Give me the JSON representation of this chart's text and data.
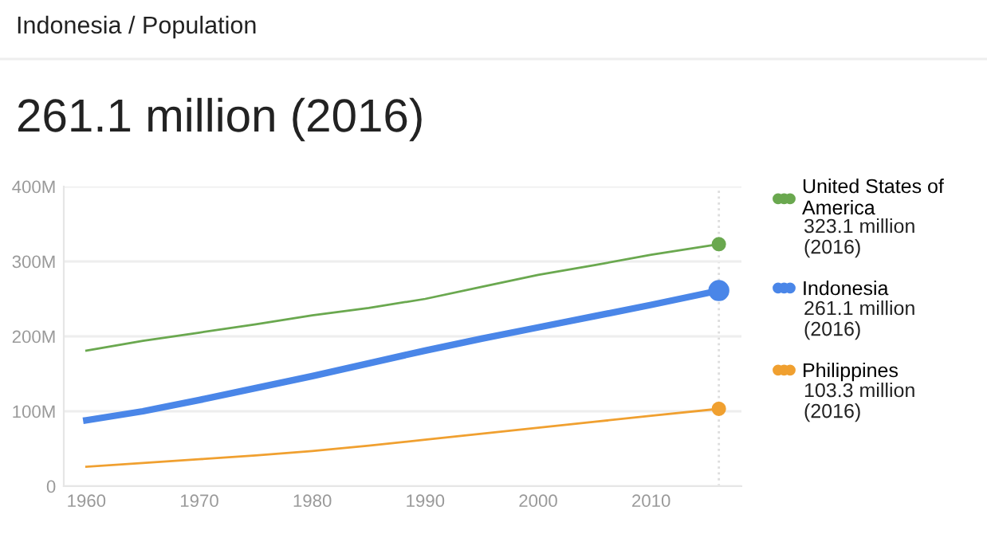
{
  "chart_data": {
    "type": "line",
    "title": "Indonesia / Population",
    "subtitle": "261.1 million (2016)",
    "x": [
      1960,
      1965,
      1970,
      1975,
      1980,
      1985,
      1990,
      1995,
      2000,
      2005,
      2010,
      2016
    ],
    "series": [
      {
        "name": "United States of America",
        "color": "#6aa84f",
        "values": [
          181,
          194,
          205,
          216,
          228,
          238,
          250,
          266,
          282,
          295,
          309,
          323.1
        ]
      },
      {
        "name": "Indonesia",
        "color": "#4a86e8",
        "values": [
          88,
          100,
          115,
          131,
          147,
          164,
          181,
          197,
          212,
          227,
          242,
          261.1
        ]
      },
      {
        "name": "Philippines",
        "color": "#f0a030",
        "values": [
          26,
          31,
          36,
          41,
          47,
          54,
          62,
          70,
          78,
          86,
          94,
          103.3
        ]
      }
    ],
    "annotations": [
      "323.1 million\n(2016)",
      "261.1 million\n(2016)",
      "103.3 million\n(2016)"
    ],
    "xlim": [
      1958,
      2018
    ],
    "xticks": [
      1960,
      1970,
      1980,
      1990,
      2000,
      2010
    ],
    "ylim": [
      0,
      400
    ],
    "yticks": [
      0,
      {
        "value": 100,
        "label": "100M"
      },
      {
        "value": 200,
        "label": "200M"
      },
      {
        "value": 300,
        "label": "300M"
      },
      {
        "value": 400,
        "label": "400M"
      }
    ],
    "ref_lines": [
      {
        "axis": "x",
        "value": 2016,
        "label": null,
        "color": "#dddddd",
        "line_style": "dotted"
      }
    ],
    "grid": "y",
    "legend": "right",
    "line_style": "solid"
  }
}
